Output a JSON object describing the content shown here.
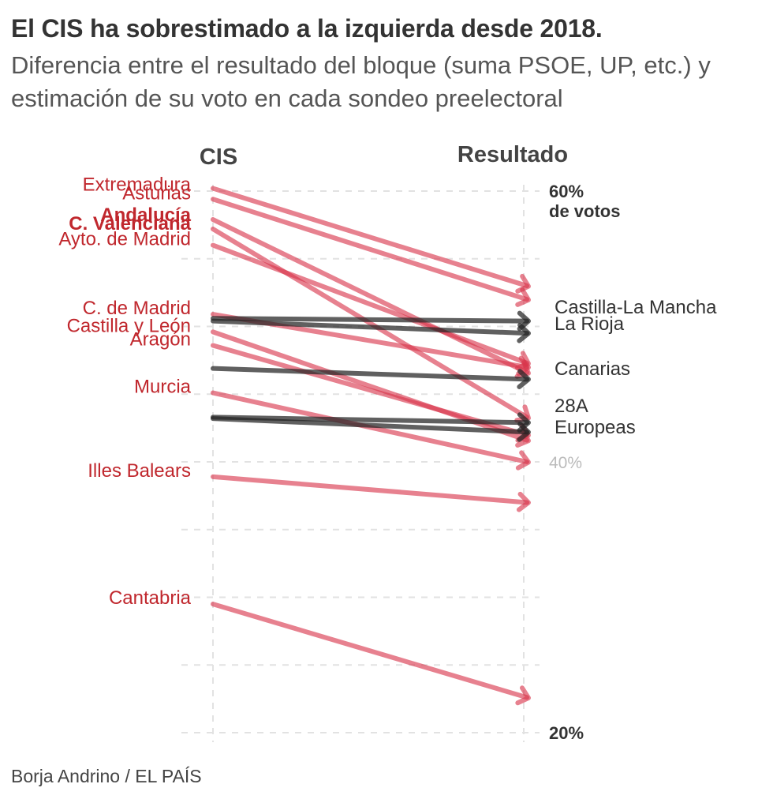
{
  "header": {
    "title": "El CIS ha sobrestimado a la izquierda desde 2018.",
    "subtitle": "Diferencia entre el resultado del bloque (suma PSOE, UP, etc.) y estimación de su voto en cada sondeo preelectoral"
  },
  "source": "Borja Andrino / EL PAÍS",
  "colors": {
    "overestimate": "#d8334a",
    "accurate": "#222222",
    "labels_red": "#c0272d",
    "text_dark": "#333333",
    "tick_light": "#bbbbbb",
    "grid": "#e2e2e2"
  },
  "chart_data": {
    "type": "slope",
    "columns": [
      "CIS",
      "Resultado"
    ],
    "ylim": [
      20,
      62
    ],
    "y_ticks": [
      {
        "value": 60,
        "lines": [
          "60%",
          "de votos"
        ],
        "style": "bold"
      },
      {
        "value": 40,
        "lines": [
          "40%"
        ],
        "style": "light"
      },
      {
        "value": 20,
        "lines": [
          "20%"
        ],
        "style": "bold"
      }
    ],
    "grid_values": [
      20,
      25,
      30,
      35,
      40,
      45,
      50,
      55,
      60
    ],
    "series": [
      {
        "name": "Extremadura",
        "cis": 60.2,
        "resultado": 53.0,
        "group": "over",
        "label_side": "left",
        "weight": "normal"
      },
      {
        "name": "Asturias",
        "cis": 59.4,
        "resultado": 52.0,
        "group": "over",
        "label_side": "left",
        "weight": "normal"
      },
      {
        "name": "Andalucía",
        "cis": 57.9,
        "resultado": 46.6,
        "group": "over",
        "label_side": "left",
        "weight": "bold"
      },
      {
        "name": "C. Valenciana",
        "cis": 57.2,
        "resultado": 43.3,
        "group": "over",
        "label_side": "left",
        "weight": "bold"
      },
      {
        "name": "Ayto. de Madrid",
        "cis": 56.0,
        "resultado": 47.3,
        "group": "over",
        "label_side": "left",
        "weight": "normal"
      },
      {
        "name": "C. de Madrid",
        "cis": 50.9,
        "resultado": 47.0,
        "group": "over",
        "label_side": "left",
        "weight": "normal"
      },
      {
        "name": "Castilla y León",
        "cis": 49.6,
        "resultado": 41.6,
        "group": "over",
        "label_side": "left",
        "weight": "normal"
      },
      {
        "name": "Aragón",
        "cis": 48.6,
        "resultado": 42.0,
        "group": "over",
        "label_side": "left",
        "weight": "normal"
      },
      {
        "name": "Murcia",
        "cis": 45.1,
        "resultado": 40.0,
        "group": "over",
        "label_side": "left",
        "weight": "normal"
      },
      {
        "name": "Illes Balears",
        "cis": 38.9,
        "resultado": 37.0,
        "group": "over",
        "label_side": "left",
        "weight": "normal"
      },
      {
        "name": "Cantabria",
        "cis": 29.5,
        "resultado": 22.6,
        "group": "over",
        "label_side": "left",
        "weight": "normal"
      },
      {
        "name": "Castilla-La Mancha",
        "cis": 50.6,
        "resultado": 50.4,
        "group": "accurate",
        "label_side": "right",
        "weight": "normal"
      },
      {
        "name": "La Rioja",
        "cis": 50.4,
        "resultado": 49.5,
        "group": "accurate",
        "label_side": "right",
        "weight": "normal"
      },
      {
        "name": "Canarias",
        "cis": 46.9,
        "resultado": 46.1,
        "group": "accurate",
        "label_side": "right",
        "weight": "normal"
      },
      {
        "name": "28A",
        "cis": 43.3,
        "resultado": 42.9,
        "group": "accurate",
        "label_side": "right",
        "weight": "normal"
      },
      {
        "name": "Europeas",
        "cis": 43.2,
        "resultado": 42.2,
        "group": "accurate",
        "label_side": "right",
        "weight": "normal"
      }
    ]
  }
}
